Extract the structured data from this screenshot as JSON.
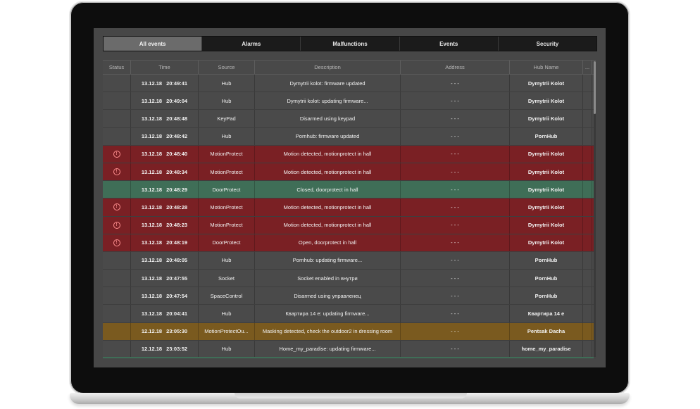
{
  "tabs": [
    {
      "label": "All events",
      "active": true
    },
    {
      "label": "Alarms",
      "active": false
    },
    {
      "label": "Malfunctions",
      "active": false
    },
    {
      "label": "Events",
      "active": false
    },
    {
      "label": "Security",
      "active": false
    }
  ],
  "columns": {
    "status": "Status",
    "time": "Time",
    "source": "Source",
    "description": "Description",
    "address": "Address",
    "hub": "Hub Name",
    "more": "..."
  },
  "colors": {
    "normal": "#4a4a4a",
    "alarm": "#7a2024",
    "ok": "#3f6e57",
    "warn": "#7a5a1f"
  },
  "rows": [
    {
      "type": "normal",
      "alert": false,
      "date": "13.12.18",
      "time": "20:49:41",
      "source": "Hub",
      "description": "Dymytrii kolot: firmware updated",
      "address": "- - -",
      "hub": "Dymytrii Kolot"
    },
    {
      "type": "normal",
      "alert": false,
      "date": "13.12.18",
      "time": "20:49:04",
      "source": "Hub",
      "description": "Dymytrii kolot: updating firmware...",
      "address": "- - -",
      "hub": "Dymytrii Kolot"
    },
    {
      "type": "normal",
      "alert": false,
      "date": "13.12.18",
      "time": "20:48:48",
      "source": "KeyPad",
      "description": "Disarmed using keypad",
      "address": "- - -",
      "hub": "Dymytrii Kolot"
    },
    {
      "type": "normal",
      "alert": false,
      "date": "13.12.18",
      "time": "20:48:42",
      "source": "Hub",
      "description": "Pornhub: firmware updated",
      "address": "- - -",
      "hub": "PornHub"
    },
    {
      "type": "alarm",
      "alert": true,
      "date": "13.12.18",
      "time": "20:48:40",
      "source": "MotionProtect",
      "description": "Motion detected, motionprotect in hall",
      "address": "- - -",
      "hub": "Dymytrii Kolot"
    },
    {
      "type": "alarm",
      "alert": true,
      "date": "13.12.18",
      "time": "20:48:34",
      "source": "MotionProtect",
      "description": "Motion detected, motionprotect in hall",
      "address": "- - -",
      "hub": "Dymytrii Kolot"
    },
    {
      "type": "ok",
      "alert": false,
      "date": "13.12.18",
      "time": "20:48:29",
      "source": "DoorProtect",
      "description": "Closed, doorprotect in hall",
      "address": "- - -",
      "hub": "Dymytrii Kolot"
    },
    {
      "type": "alarm",
      "alert": true,
      "date": "13.12.18",
      "time": "20:48:28",
      "source": "MotionProtect",
      "description": "Motion detected, motionprotect in hall",
      "address": "- - -",
      "hub": "Dymytrii Kolot"
    },
    {
      "type": "alarm",
      "alert": true,
      "date": "13.12.18",
      "time": "20:48:23",
      "source": "MotionProtect",
      "description": "Motion detected, motionprotect in hall",
      "address": "- - -",
      "hub": "Dymytrii Kolot"
    },
    {
      "type": "alarm",
      "alert": true,
      "date": "13.12.18",
      "time": "20:48:19",
      "source": "DoorProtect",
      "description": "Open, doorprotect in hall",
      "address": "- - -",
      "hub": "Dymytrii Kolot"
    },
    {
      "type": "normal",
      "alert": false,
      "date": "13.12.18",
      "time": "20:48:05",
      "source": "Hub",
      "description": "Pornhub: updating firmware...",
      "address": "- - -",
      "hub": "PornHub"
    },
    {
      "type": "normal",
      "alert": false,
      "date": "13.12.18",
      "time": "20:47:55",
      "source": "Socket",
      "description": "Socket enabled in внутри",
      "address": "- - -",
      "hub": "PornHub"
    },
    {
      "type": "normal",
      "alert": false,
      "date": "13.12.18",
      "time": "20:47:54",
      "source": "SpaceControl",
      "description": "Disarmed using управленец",
      "address": "- - -",
      "hub": "PornHub"
    },
    {
      "type": "normal",
      "alert": false,
      "date": "13.12.18",
      "time": "20:04:41",
      "source": "Hub",
      "description": "Квартира 14 e: updating firmware...",
      "address": "- - -",
      "hub": "Квартира 14 e"
    },
    {
      "type": "warn",
      "alert": false,
      "date": "12.12.18",
      "time": "23:05:30",
      "source": "MotionProtectOu...",
      "description": "Masking detected, check the outdoor2 in dressing room",
      "address": "- - -",
      "hub": "Pentsak Dacha"
    },
    {
      "type": "normal",
      "alert": false,
      "date": "12.12.18",
      "time": "23:03:52",
      "source": "Hub",
      "description": "Home_my_paradise: updating firmware...",
      "address": "- - -",
      "hub": "home_my_paradise"
    }
  ]
}
